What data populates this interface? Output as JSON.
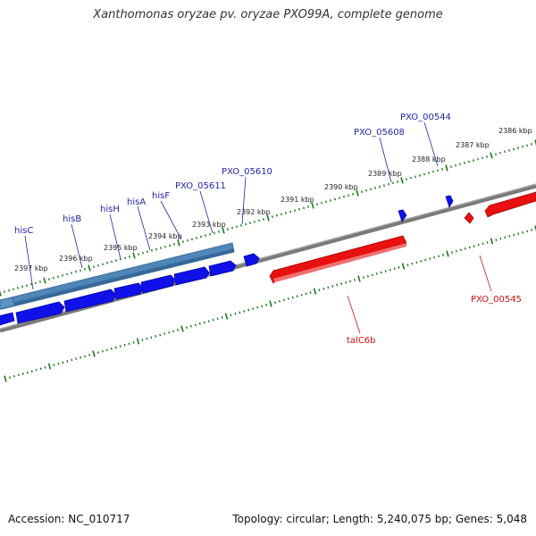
{
  "header": {
    "title": "Xanthomonas oryzae pv. oryzae PXO99A, complete genome"
  },
  "footer": {
    "accession": "Accession: NC_010717",
    "summary": "Topology: circular; Length: 5,240,075 bp; Genes: 5,048"
  },
  "colors": {
    "forward_gene": "#1010e8",
    "reverse_gene": "#e81010",
    "operon": "#4f86b8",
    "backbone": "#7a7a7a",
    "ticks": "#1a7a1a",
    "forward_label": "#2222aa",
    "reverse_label": "#cc1111"
  },
  "scale": {
    "tick_labels": [
      "2397 kbp",
      "2396 kbp",
      "2395 kbp",
      "2394 kbp",
      "2393 kbp",
      "2392 kbp",
      "2391 kbp",
      "2390 kbp",
      "2389 kbp",
      "2388 kbp",
      "2387 kbp",
      "2386 kbp"
    ]
  },
  "forward_labels": [
    "hisC",
    "hisB",
    "hisH",
    "hisA",
    "hisF",
    "PXO_05611",
    "PXO_05610",
    "PXO_05608",
    "PXO_00544"
  ],
  "reverse_labels": [
    "talC6b",
    "PXO_00545"
  ]
}
